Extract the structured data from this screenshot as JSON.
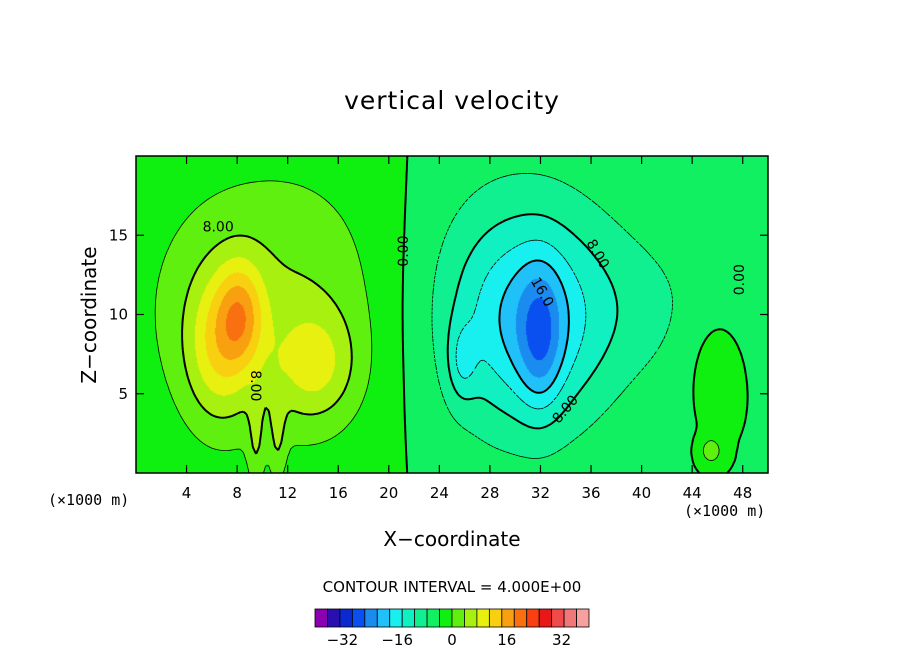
{
  "chart_data": {
    "type": "contour",
    "title": "vertical velocity",
    "xlabel": "X−coordinate",
    "ylabel": "Z−coordinate",
    "x_unit": "(×1000 m)",
    "y_unit": "(×1000 m)",
    "xlim": [
      0,
      50
    ],
    "ylim": [
      0,
      20
    ],
    "xticks": [
      4,
      8,
      12,
      16,
      20,
      24,
      28,
      32,
      36,
      40,
      44,
      48
    ],
    "yticks": [
      5,
      10,
      15
    ],
    "contour_interval_text": "CONTOUR INTERVAL = 4.000E+00",
    "contour_interval": 4,
    "contour_labels": [
      {
        "text": "8.00",
        "x": 6.5,
        "y": 15.5,
        "rotate": 0
      },
      {
        "text": "0.00",
        "x": 21.2,
        "y": 14.0,
        "rotate": -90
      },
      {
        "text": "8.00",
        "x": 36.5,
        "y": 13.8,
        "rotate": 60
      },
      {
        "text": "16.0",
        "x": 32.1,
        "y": 11.4,
        "rotate": 60
      },
      {
        "text": "8.00",
        "x": 9.4,
        "y": 5.5,
        "rotate": 90
      },
      {
        "text": "8.00",
        "x": 34.0,
        "y": 4.0,
        "rotate": -50
      },
      {
        "text": "0.00",
        "x": 47.8,
        "y": 12.2,
        "rotate": -90
      }
    ],
    "colorbar": {
      "ticks": [
        -32,
        -16,
        0,
        16,
        32
      ],
      "range": [
        -40,
        40
      ],
      "colors": [
        "#8b00b0",
        "#2a0fb0",
        "#0a2ad0",
        "#0a50f0",
        "#1a8cf0",
        "#20c0f8",
        "#18f0f0",
        "#10f0c0",
        "#10f090",
        "#10f060",
        "#10f010",
        "#60f010",
        "#a8f010",
        "#e8f010",
        "#f8d010",
        "#f8a010",
        "#f87010",
        "#f84010",
        "#e81818",
        "#f04a4a",
        "#f07878",
        "#f8a0a0"
      ]
    },
    "field": {
      "background": 0,
      "blobs": [
        {
          "cx": 11.0,
          "cy": 10.5,
          "sx": 7.5,
          "sy": 6.5,
          "a": 8.5
        },
        {
          "cx": 6.5,
          "cy": 8.0,
          "sx": 1.8,
          "sy": 3.2,
          "a": 10.5
        },
        {
          "cx": 8.3,
          "cy": 10.0,
          "sx": 1.3,
          "sy": 2.3,
          "a": 12.0
        },
        {
          "cx": 14.2,
          "cy": 6.8,
          "sx": 2.2,
          "sy": 2.4,
          "a": 8.5
        },
        {
          "cx": 9.5,
          "cy": 2.0,
          "sx": 0.45,
          "sy": 2.2,
          "a": 5.0
        },
        {
          "cx": 11.2,
          "cy": 2.4,
          "sx": 0.45,
          "sy": 2.2,
          "a": 5.0
        },
        {
          "cx": 30.0,
          "cy": 10.5,
          "sx": 6.5,
          "sy": 6.3,
          "a": -8.0
        },
        {
          "cx": 31.0,
          "cy": 9.5,
          "sx": 3.8,
          "sy": 4.2,
          "a": -10.0
        },
        {
          "cx": 32.0,
          "cy": 8.5,
          "sx": 1.2,
          "sy": 3.0,
          "a": -10.0
        },
        {
          "cx": 25.8,
          "cy": 7.0,
          "sx": 0.8,
          "sy": 1.7,
          "a": -6.0
        },
        {
          "cx": 40.5,
          "cy": 10.5,
          "sx": 4.5,
          "sy": 3.5,
          "a": -3.0
        },
        {
          "cx": 45.5,
          "cy": 7.0,
          "sx": 1.5,
          "sy": 2.5,
          "a": 2.5
        },
        {
          "cx": 45.5,
          "cy": 1.4,
          "sx": 0.6,
          "sy": 0.6,
          "a": 7.0
        }
      ]
    }
  }
}
